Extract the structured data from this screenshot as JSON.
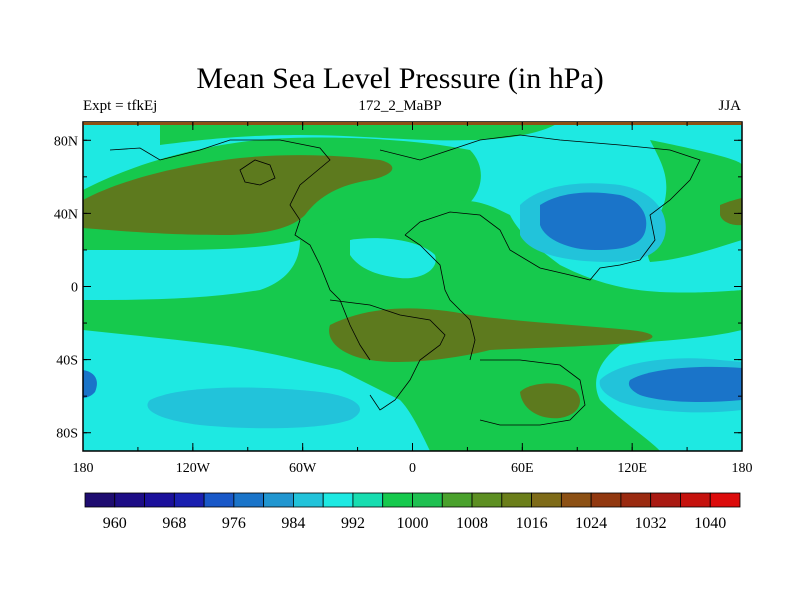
{
  "title": "Mean Sea Level Pressure (in hPa)",
  "left_label": "Expt = tfkEj",
  "center_label": "172_2_MaBP",
  "right_label": "JJA",
  "lon_ticks": [
    "180",
    "120W",
    "60W",
    "0",
    "60E",
    "120E",
    "180"
  ],
  "lat_ticks": [
    "80N",
    "40N",
    "0",
    "40S",
    "80S"
  ],
  "colorbar": {
    "labels": [
      "960",
      "968",
      "976",
      "984",
      "992",
      "1000",
      "1008",
      "1016",
      "1024",
      "1032",
      "1040"
    ],
    "colors": [
      "#1e0c70",
      "#1d0d86",
      "#1b109b",
      "#1a1fb0",
      "#1958c8",
      "#1a74c9",
      "#2196d0",
      "#22c3da",
      "#1ee9e2",
      "#17ddb0",
      "#16c94d",
      "#1fc051",
      "#4aa12c",
      "#5d8f22",
      "#6b7e1a",
      "#7e6b18",
      "#8c5014",
      "#91380f",
      "#9a2a10",
      "#a91a12",
      "#c5120d",
      "#dc0b0b"
    ]
  },
  "chart_data": {
    "type": "heatmap",
    "xlim": [
      -180,
      180
    ],
    "ylim": [
      -90,
      90
    ],
    "levels": [
      960,
      964,
      968,
      972,
      976,
      980,
      984,
      988,
      992,
      996,
      1000,
      1004,
      1008,
      1012,
      1016,
      1020,
      1024,
      1028,
      1032,
      1036,
      1040
    ],
    "colors": {
      "land_base": "#16c94d",
      "ocean_base": "#1ee9e2",
      "low_1": "#22c3da",
      "low_2": "#1a74c9",
      "high_1": "#4aa12c",
      "high_2": "#5d6b1e"
    }
  }
}
